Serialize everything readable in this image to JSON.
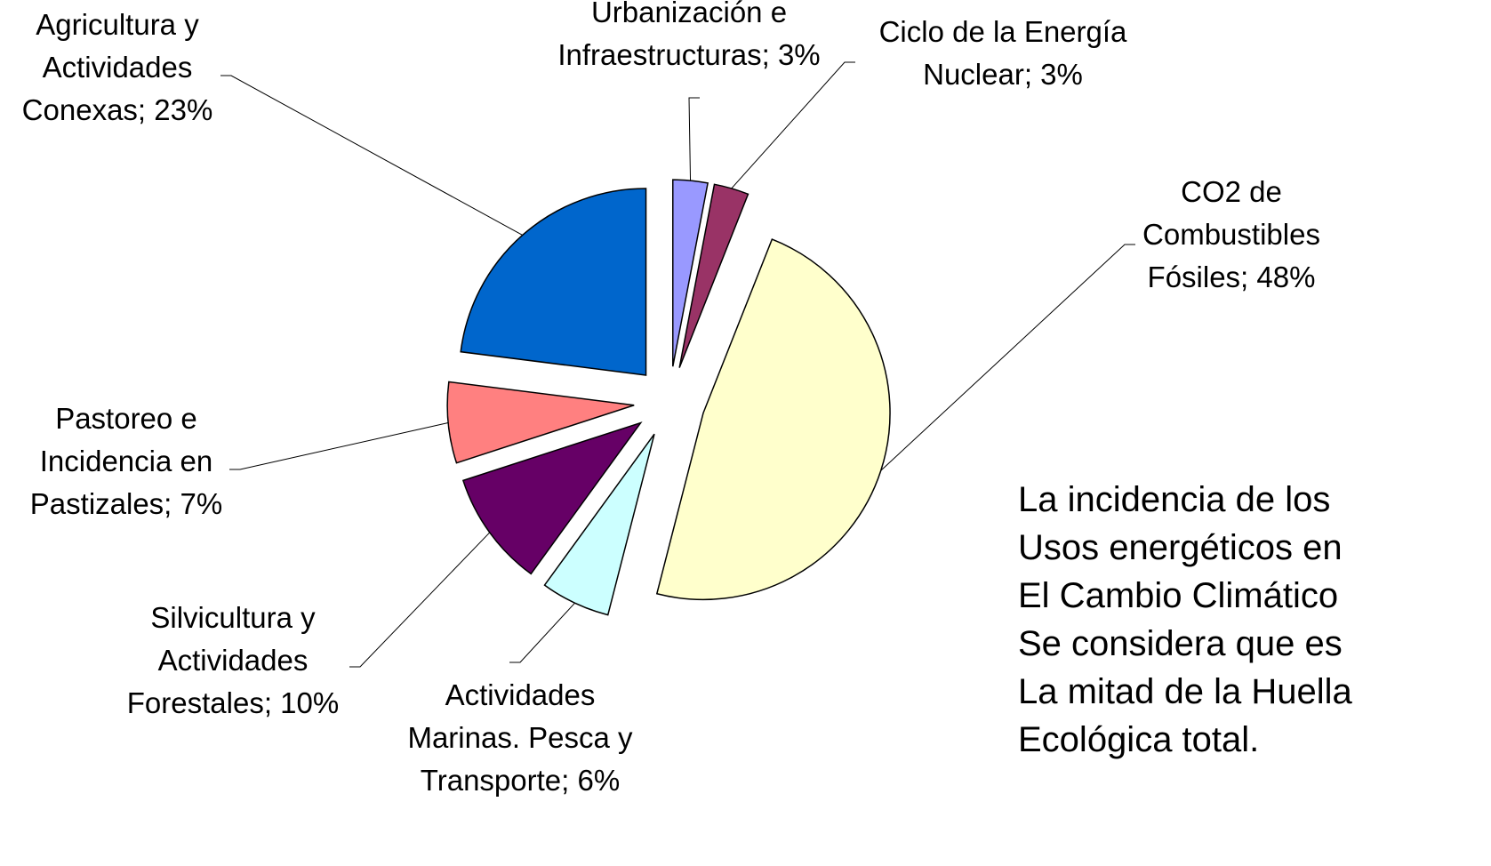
{
  "chart_data": {
    "type": "pie",
    "categories": [
      [
        "Urbanización e",
        "Infraestructuras; 3%"
      ],
      [
        "Ciclo de la Energía",
        "Nuclear; 3%"
      ],
      [
        "CO2 de",
        "Combustibles",
        "Fósiles; 48%"
      ],
      [
        "Actividades",
        "Marinas. Pesca y",
        "Transporte; 6%"
      ],
      [
        "Silvicultura y",
        "Actividades",
        "Forestales; 10%"
      ],
      [
        "Pastoreo e",
        "Incidencia en",
        "Pastizales; 7%"
      ],
      [
        "Agricultura y",
        "Actividades",
        "Conexas; 23%"
      ]
    ],
    "values": [
      3,
      3,
      48,
      6,
      10,
      7,
      23
    ],
    "colors": [
      "#9999ff",
      "#993366",
      "#ffffcc",
      "#ccffff",
      "#660066",
      "#ff8080",
      "#0066cc"
    ],
    "annotation": [
      "La incidencia de los",
      "Usos energéticos en",
      "El Cambio Climático",
      "Se considera que es",
      "La mitad de la Huella",
      "Ecológica total."
    ]
  }
}
